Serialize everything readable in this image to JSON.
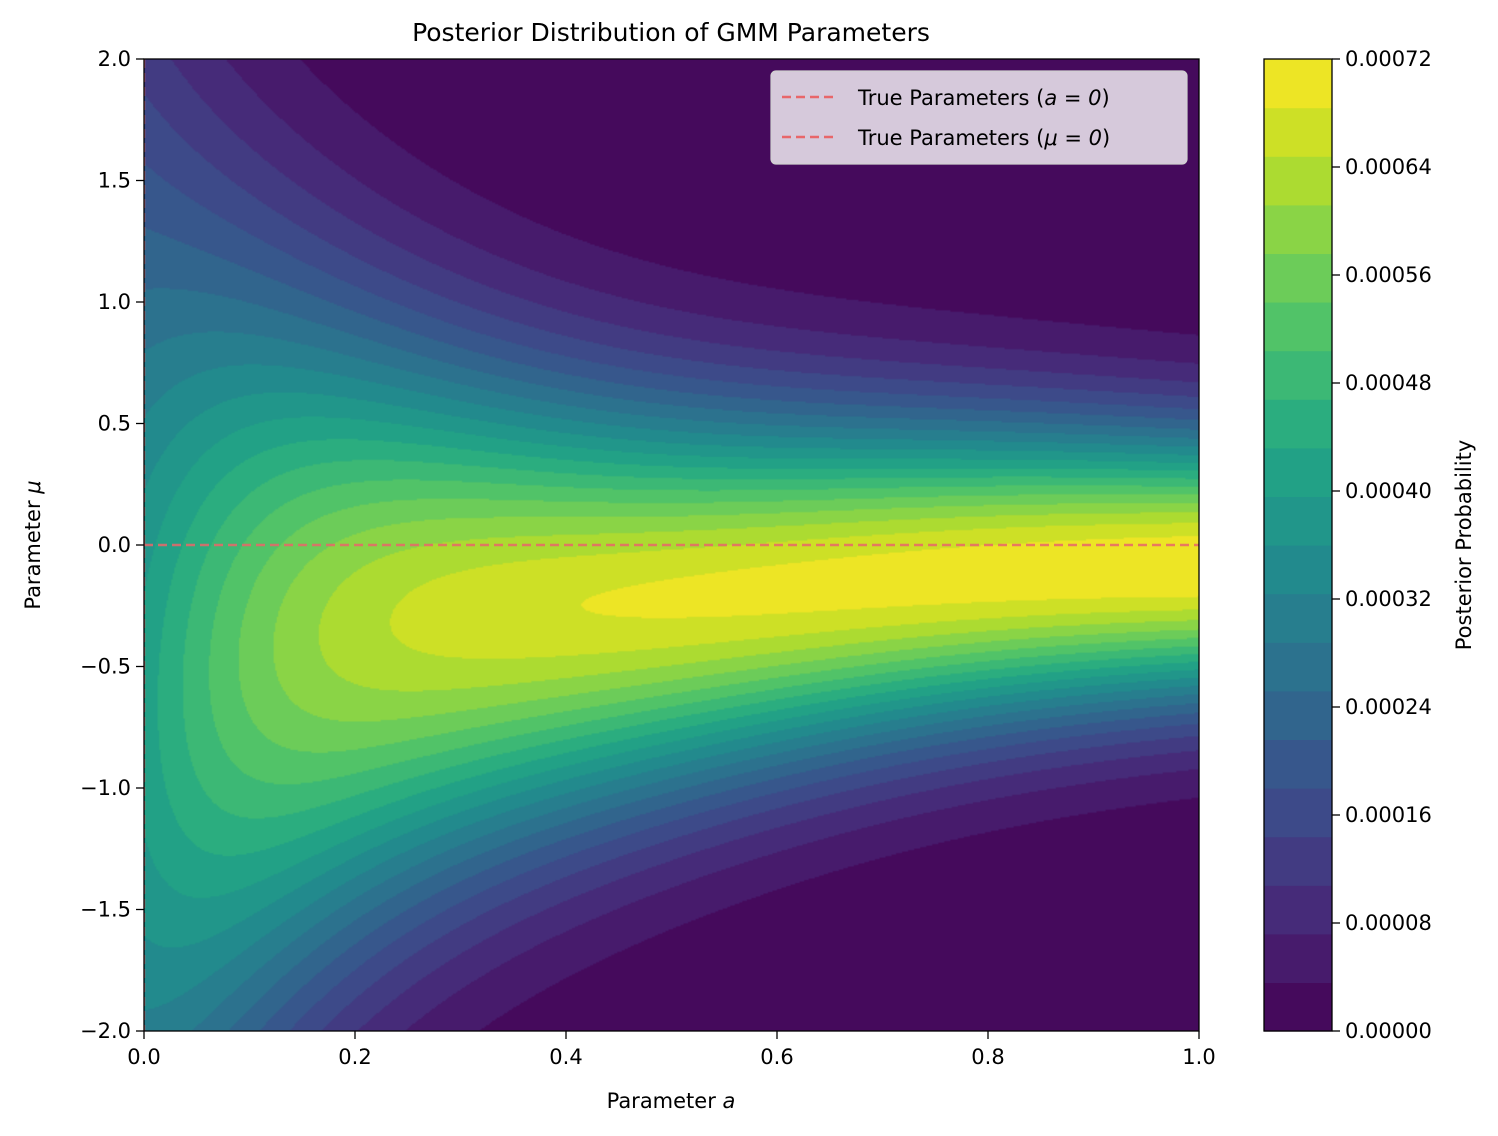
{
  "chart_data": {
    "type": "heatmap",
    "subtype": "filled-contour",
    "title": "Posterior Distribution of GMM Parameters",
    "xlabel_prefix": "Parameter ",
    "xlabel_symbol": "a",
    "ylabel_prefix": "Parameter ",
    "ylabel_symbol": "μ",
    "xlim": [
      0.0,
      1.0
    ],
    "ylim": [
      -2.0,
      2.0
    ],
    "x_ticks": [
      "0.0",
      "0.2",
      "0.4",
      "0.6",
      "0.8",
      "1.0"
    ],
    "y_ticks": [
      "2.0",
      "1.5",
      "1.0",
      "0.5",
      "0.0",
      "−0.5",
      "−1.0",
      "−1.5",
      "−2.0"
    ],
    "colormap": "viridis",
    "colorbar": {
      "label": "Posterior Probability",
      "range": [
        0.0,
        0.00072
      ],
      "levels": 20,
      "ticks": [
        "0.00072",
        "0.00064",
        "0.00056",
        "0.00048",
        "0.00040",
        "0.00032",
        "0.00024",
        "0.00016",
        "0.00008",
        "0.00000"
      ]
    },
    "peak": {
      "a": 0.95,
      "mu": -0.1,
      "value": 0.00072
    },
    "reference_lines": [
      {
        "label_prefix": "True Parameters (",
        "label_math": "a = 0",
        "label_suffix": ")",
        "orientation": "vertical",
        "value": 0,
        "color": "#e8666a",
        "style": "dashed"
      },
      {
        "label_prefix": "True Parameters (",
        "label_math": "μ = 0",
        "label_suffix": ")",
        "orientation": "horizontal",
        "value": 0,
        "color": "#e8666a",
        "style": "dashed"
      }
    ],
    "legend_position": "top-right",
    "grid": false
  }
}
